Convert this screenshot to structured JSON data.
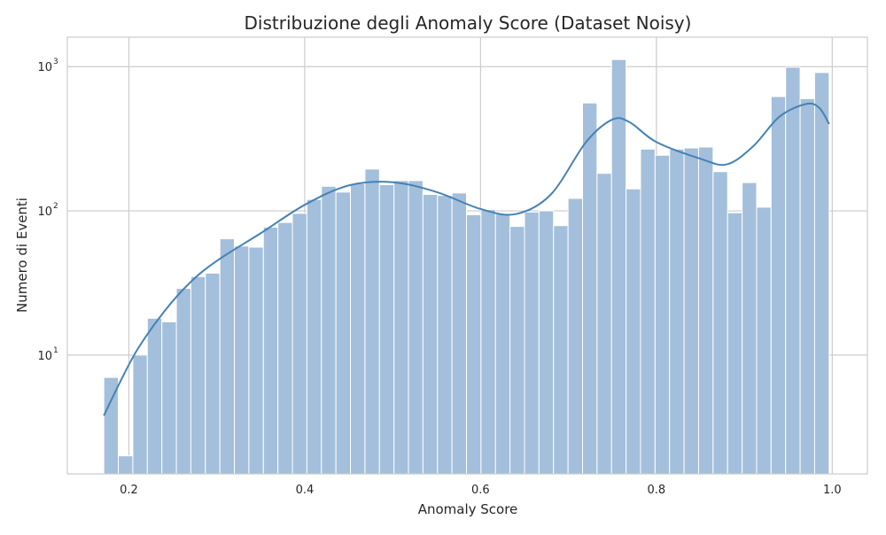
{
  "chart_data": {
    "type": "bar",
    "title": "Distribuzione degli Anomaly Score (Dataset Noisy)",
    "xlabel": "Anomaly Score",
    "ylabel": "Numero di Eventi",
    "y_scale": "log",
    "xlim": [
      0.13,
      1.04
    ],
    "ylim": [
      1.5,
      1600
    ],
    "x_ticks": [
      0.2,
      0.4,
      0.6,
      0.8,
      1.0
    ],
    "x_tick_labels": [
      "0.2",
      "0.4",
      "0.6",
      "0.8",
      "1.0"
    ],
    "y_ticks": [
      10,
      100,
      1000
    ],
    "y_tick_labels": [
      {
        "base": "10",
        "exp": "1"
      },
      {
        "base": "10",
        "exp": "2"
      },
      {
        "base": "10",
        "exp": "3"
      }
    ],
    "bin_edges": [
      0.1715,
      0.188,
      0.2045,
      0.221,
      0.2375,
      0.254,
      0.2705,
      0.287,
      0.3035,
      0.32,
      0.3365,
      0.353,
      0.3695,
      0.386,
      0.4025,
      0.419,
      0.4355,
      0.452,
      0.4685,
      0.485,
      0.5015,
      0.518,
      0.5345,
      0.551,
      0.5675,
      0.584,
      0.6005,
      0.617,
      0.6335,
      0.65,
      0.6665,
      0.683,
      0.6995,
      0.716,
      0.7325,
      0.749,
      0.7655,
      0.782,
      0.7985,
      0.815,
      0.8315,
      0.848,
      0.8645,
      0.881,
      0.8975,
      0.914,
      0.9305,
      0.947,
      0.9635,
      0.98,
      0.9965
    ],
    "counts": [
      7,
      2,
      10,
      18,
      17,
      29,
      35,
      37,
      64,
      57,
      56,
      77,
      83,
      96,
      120,
      148,
      135,
      155,
      195,
      152,
      162,
      162,
      130,
      128,
      133,
      94,
      102,
      95,
      78,
      98,
      100,
      79,
      122,
      560,
      182,
      1120,
      142,
      268,
      243,
      268,
      273,
      277,
      187,
      97,
      157,
      106,
      620,
      990,
      600,
      910
    ],
    "kde_curve": {
      "x": [
        0.1715,
        0.19,
        0.21,
        0.24,
        0.27,
        0.3,
        0.35,
        0.4,
        0.45,
        0.5,
        0.55,
        0.6,
        0.64,
        0.68,
        0.72,
        0.75,
        0.77,
        0.8,
        0.85,
        0.88,
        0.91,
        0.94,
        0.97,
        0.985,
        0.9965
      ],
      "y": [
        3.8,
        6.5,
        11,
        20,
        32,
        45,
        70,
        110,
        150,
        158,
        135,
        103,
        95,
        130,
        300,
        430,
        410,
        300,
        230,
        210,
        280,
        450,
        550,
        520,
        400
      ]
    },
    "colors": {
      "bar_fill": "#a3bfdb",
      "bar_stroke": "#ffffff",
      "curve": "#4682b4",
      "grid": "#cccccc",
      "axes": "#cccccc"
    },
    "grid": true
  }
}
